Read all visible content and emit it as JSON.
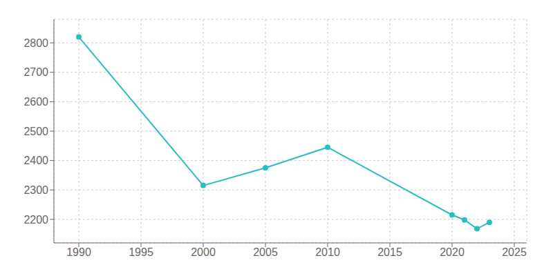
{
  "chart_data": {
    "type": "line",
    "x": [
      1990,
      2000,
      2005,
      2010,
      2020,
      2021,
      2022,
      2023
    ],
    "values": [
      2820,
      2315,
      2375,
      2445,
      2215,
      2198,
      2168,
      2190
    ],
    "color": "#2ABFBF",
    "marker": "circle",
    "xlim": [
      1988,
      2026
    ],
    "ylim": [
      2120,
      2880
    ],
    "xticks": [
      1990,
      1995,
      2000,
      2005,
      2010,
      2015,
      2020,
      2025
    ],
    "yticks": [
      2200,
      2300,
      2400,
      2500,
      2600,
      2700,
      2800
    ],
    "grid": true
  }
}
